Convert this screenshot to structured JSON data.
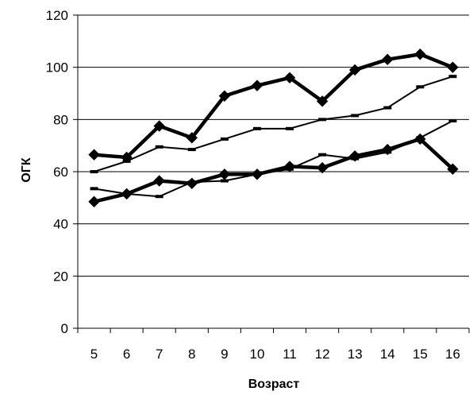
{
  "chart_data": {
    "type": "line",
    "title": "",
    "xlabel": "Возраст",
    "ylabel": "ОГК",
    "categories": [
      "5",
      "6",
      "7",
      "8",
      "9",
      "10",
      "11",
      "12",
      "13",
      "14",
      "15",
      "16"
    ],
    "ylim": [
      0,
      120
    ],
    "yticks": [
      0,
      20,
      40,
      60,
      80,
      100,
      120
    ],
    "grid": "horizontal",
    "legend": "none",
    "series": [
      {
        "values": [
          66.5,
          65.5,
          77.5,
          73,
          89,
          93,
          96,
          87,
          99,
          103,
          105,
          100
        ],
        "style": "thick",
        "marker": "diamond"
      },
      {
        "values": [
          60,
          64,
          69.5,
          68.5,
          72.5,
          76.5,
          76.5,
          80,
          81.5,
          84.5,
          92.5,
          96.5
        ],
        "style": "thin",
        "marker": "dash"
      },
      {
        "values": [
          48.5,
          51.5,
          56.5,
          55.5,
          59,
          59,
          62,
          61.5,
          66,
          68.5,
          72.5,
          61
        ],
        "style": "thick",
        "marker": "diamond"
      },
      {
        "values": [
          53.5,
          51.5,
          50.5,
          56,
          56.5,
          59,
          61,
          66.5,
          65,
          67.5,
          73,
          79.5
        ],
        "style": "thin",
        "marker": "dash"
      }
    ]
  }
}
